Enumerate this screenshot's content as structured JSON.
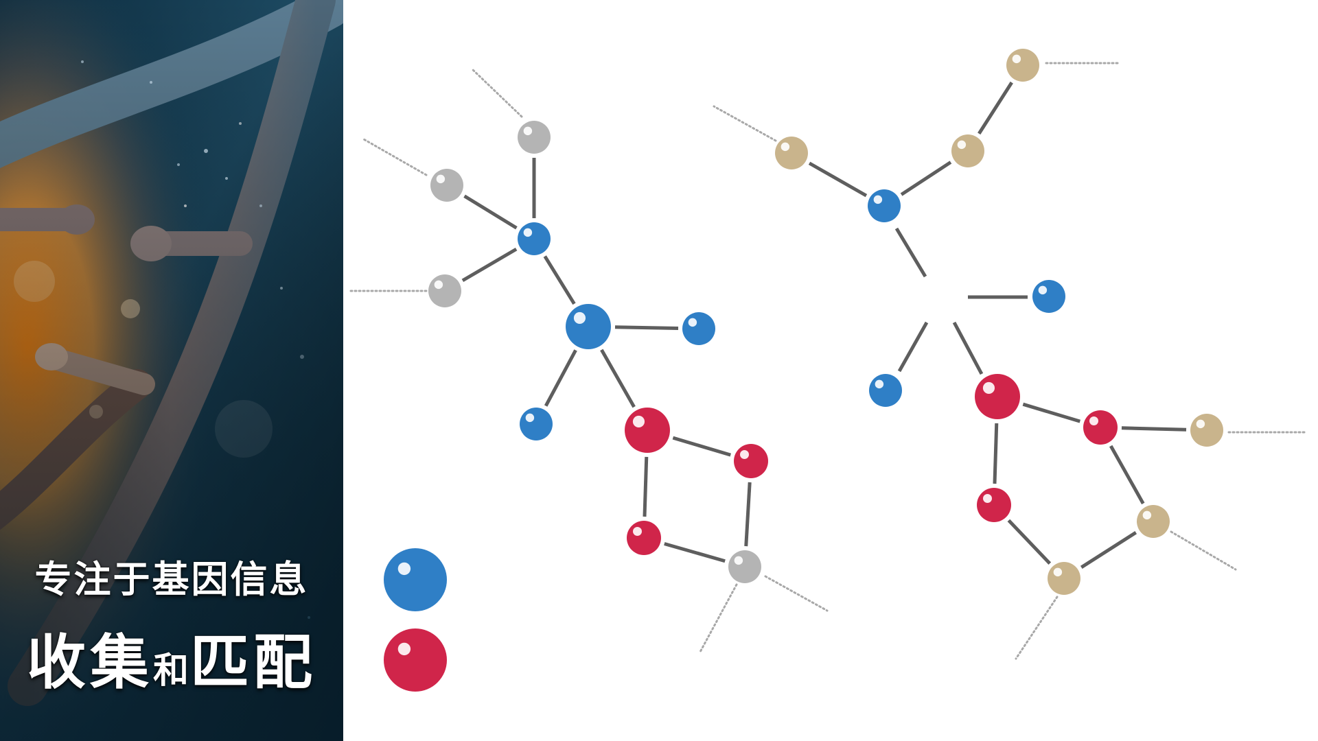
{
  "tagline": {
    "line1": "专注于基因信息",
    "line2_a": "收集",
    "line2_b": "和",
    "line2_c": "匹配"
  },
  "colors": {
    "blue": "#2f7fc6",
    "red": "#d0254a",
    "gray": "#b4b4b4",
    "tan": "#c9b48c",
    "bond": "#5e5e5e",
    "dotted": "#a8a8a8"
  },
  "icons": {
    "legend_1": "blue-sphere-icon",
    "legend_2": "red-sphere-icon"
  }
}
